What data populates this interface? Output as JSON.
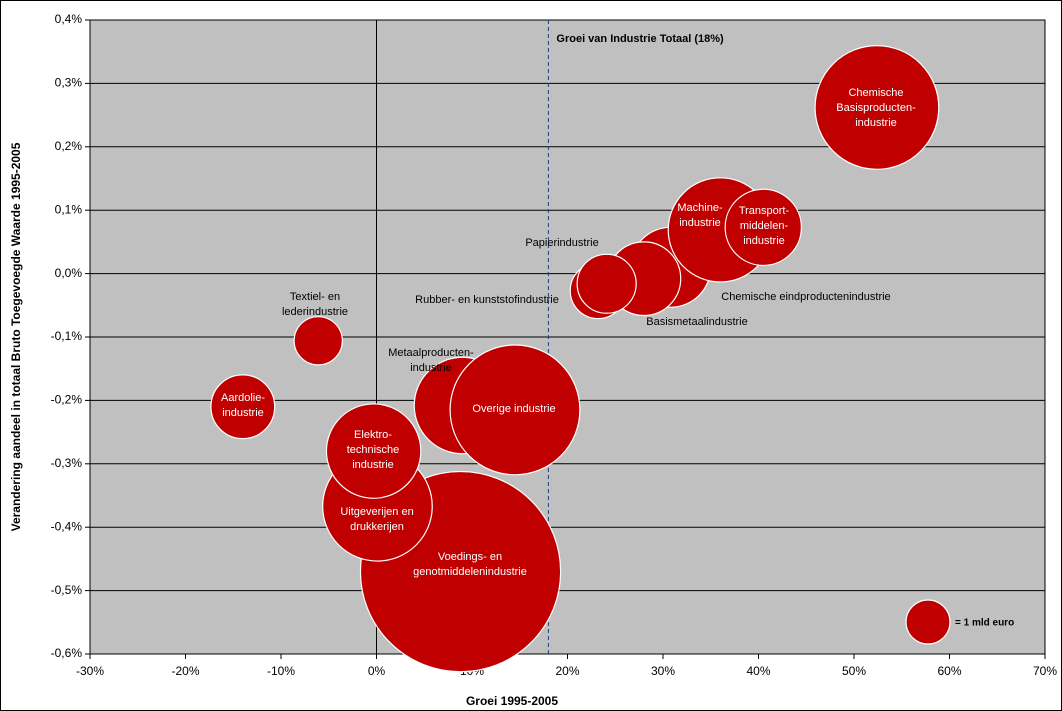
{
  "chart_data": {
    "type": "bubble",
    "x_label": "Groei 1995-2005",
    "y_label": "Verandering aandeel in totaal Bruto Toegevoegde Waarde 1995-2005",
    "labels": [
      [
        "Voedings- en",
        "genotmiddelenindustrie"
      ],
      [
        "Chemische",
        "Basisproducten-",
        "industrie"
      ],
      [
        "Uitgeverijen en",
        "drukkerijen"
      ],
      [
        "Metaalproducten-",
        "industrie"
      ],
      [
        "Overige industrie"
      ],
      [
        "Elektro-",
        "technische",
        "industrie"
      ],
      [
        "Chemische eindproductenindustrie"
      ],
      [
        "Basismetaalindustrie"
      ],
      [
        "Machine-",
        "industrie"
      ],
      [
        "Transport-",
        "middelen-",
        "industrie"
      ],
      [
        "Rubber- en kunststofindustrie"
      ],
      [
        "Papierindustrie"
      ],
      [
        "Aardolie-",
        "industrie"
      ],
      [
        "Textiel- en",
        "lederindustrie"
      ]
    ],
    "x": [
      8.8,
      52.4,
      0.1,
      9.0,
      14.5,
      -0.3,
      30.8,
      28.0,
      36.0,
      40.5,
      23.2,
      24.1,
      -14.0,
      -6.1
    ],
    "y": [
      -0.47,
      0.262,
      -0.367,
      -0.208,
      -0.215,
      -0.28,
      0.01,
      -0.008,
      0.069,
      0.073,
      -0.027,
      -0.016,
      -0.21,
      -0.106
    ],
    "size": [
      20.7,
      7.9,
      6.2,
      4.8,
      8.7,
      4.6,
      3.3,
      2.8,
      5.6,
      3.0,
      1.6,
      1.8,
      2.1,
      1.2
    ],
    "color": "#c00000",
    "size_legend": {
      "value": 1,
      "label": "= 1 mld euro"
    },
    "reference_line": {
      "x": 18,
      "label": "Groei van Industrie Totaal (18%)"
    },
    "xlim": [
      -30,
      70
    ],
    "ylim": [
      -0.6,
      0.4
    ],
    "xticks": [
      {
        "value": -30,
        "label": "-30%"
      },
      {
        "value": -20,
        "label": "-20%"
      },
      {
        "value": -10,
        "label": "-10%"
      },
      {
        "value": 0,
        "label": "0%"
      },
      {
        "value": 10,
        "label": "10%"
      },
      {
        "value": 20,
        "label": "20%"
      },
      {
        "value": 30,
        "label": "30%"
      },
      {
        "value": 40,
        "label": "40%"
      },
      {
        "value": 50,
        "label": "50%"
      },
      {
        "value": 60,
        "label": "60%"
      },
      {
        "value": 70,
        "label": "70%"
      }
    ],
    "yticks": [
      {
        "value": -0.6,
        "label": "-0,6%"
      },
      {
        "value": -0.5,
        "label": "-0,5%"
      },
      {
        "value": -0.4,
        "label": "-0,4%"
      },
      {
        "value": -0.3,
        "label": "-0,3%"
      },
      {
        "value": -0.2,
        "label": "-0,2%"
      },
      {
        "value": -0.1,
        "label": "-0,1%"
      },
      {
        "value": 0,
        "label": "0,0%"
      },
      {
        "value": 0.1,
        "label": "0,1%"
      },
      {
        "value": 0.2,
        "label": "0,2%"
      },
      {
        "value": 0.3,
        "label": "0,3%"
      },
      {
        "value": 0.4,
        "label": "0,4%"
      }
    ],
    "grid": true
  }
}
